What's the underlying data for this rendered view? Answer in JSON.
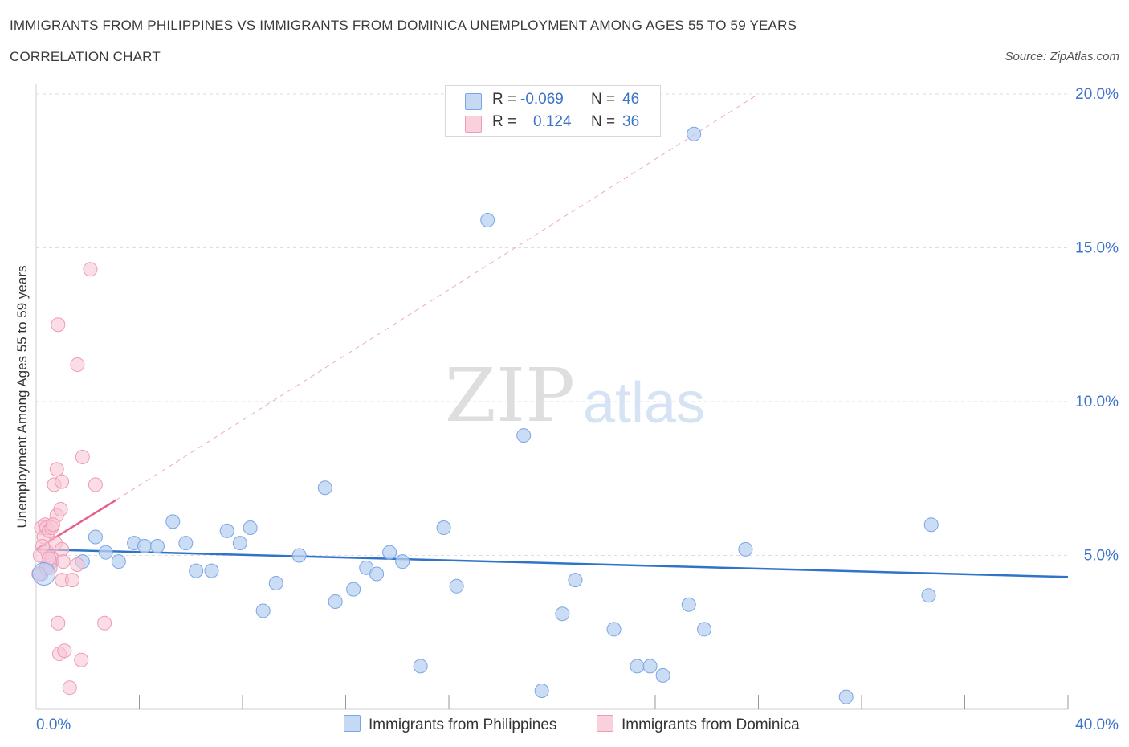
{
  "title": "IMMIGRANTS FROM PHILIPPINES VS IMMIGRANTS FROM DOMINICA UNEMPLOYMENT AMONG AGES 55 TO 59 YEARS",
  "subtitle": "CORRELATION CHART",
  "source": "Source: ZipAtlas.com",
  "watermark": {
    "zip": "ZIP",
    "atlas": "atlas"
  },
  "legend": {
    "rows": [
      {
        "r_label": "R =",
        "r_value": "-0.069",
        "n_label": "N =",
        "n_value": "46",
        "color": "#7aa6e6"
      },
      {
        "r_label": "R =",
        "r_value": "0.124",
        "n_label": "N =",
        "n_value": "36",
        "color": "#f09ab5"
      }
    ]
  },
  "bottom_legend": [
    "Immigrants from Philippines",
    "Immigrants from Dominica"
  ],
  "colors": {
    "blue_fill": "#b9d0f2",
    "blue_stroke": "#7aa6e6",
    "blue_line": "#2f74c9",
    "pink_fill": "#f8c6d5",
    "pink_stroke": "#f09ab5",
    "pink_line": "#e8608a",
    "axis_text": "#3d73c9",
    "grid": "#dedede"
  },
  "chart_data": {
    "type": "scatter",
    "title": "IMMIGRANTS FROM PHILIPPINES VS IMMIGRANTS FROM DOMINICA UNEMPLOYMENT AMONG AGES 55 TO 59 YEARS",
    "xlabel": "",
    "ylabel": "Unemployment Among Ages 55 to 59 years",
    "xlim": [
      0,
      40
    ],
    "ylim": [
      0,
      20
    ],
    "x_tick_labels": [
      {
        "x": 0,
        "label": "0.0%"
      },
      {
        "x": 40,
        "label": "40.0%"
      }
    ],
    "y_tick_labels": [
      {
        "y": 5,
        "label": "5.0%"
      },
      {
        "y": 10,
        "label": "10.0%"
      },
      {
        "y": 15,
        "label": "15.0%"
      },
      {
        "y": 20,
        "label": "20.0%"
      }
    ],
    "grid": true,
    "series": [
      {
        "name": "Immigrants from Philippines",
        "points": [
          [
            0.2,
            4.4
          ],
          [
            0.6,
            4.8
          ],
          [
            1.8,
            4.8
          ],
          [
            2.3,
            5.6
          ],
          [
            2.7,
            5.1
          ],
          [
            3.2,
            4.8
          ],
          [
            3.8,
            5.4
          ],
          [
            4.2,
            5.3
          ],
          [
            4.7,
            5.3
          ],
          [
            5.3,
            6.1
          ],
          [
            5.8,
            5.4
          ],
          [
            6.2,
            4.5
          ],
          [
            6.8,
            4.5
          ],
          [
            7.4,
            5.8
          ],
          [
            7.9,
            5.4
          ],
          [
            8.3,
            5.9
          ],
          [
            8.8,
            3.2
          ],
          [
            9.3,
            4.1
          ],
          [
            10.2,
            5.0
          ],
          [
            11.2,
            7.2
          ],
          [
            11.6,
            3.5
          ],
          [
            12.3,
            3.9
          ],
          [
            12.8,
            4.6
          ],
          [
            13.2,
            4.4
          ],
          [
            13.7,
            5.1
          ],
          [
            14.2,
            4.8
          ],
          [
            14.9,
            1.4
          ],
          [
            15.8,
            5.9
          ],
          [
            16.3,
            4.0
          ],
          [
            17.5,
            15.9
          ],
          [
            18.9,
            8.9
          ],
          [
            19.6,
            0.6
          ],
          [
            20.4,
            3.1
          ],
          [
            20.9,
            4.2
          ],
          [
            22.4,
            2.6
          ],
          [
            23.3,
            1.4
          ],
          [
            23.8,
            1.4
          ],
          [
            24.3,
            1.1
          ],
          [
            25.3,
            3.4
          ],
          [
            25.5,
            18.7
          ],
          [
            25.9,
            2.6
          ],
          [
            27.5,
            5.2
          ],
          [
            31.4,
            0.4
          ],
          [
            34.6,
            3.7
          ],
          [
            34.7,
            6.0
          ],
          [
            0.4,
            4.6
          ]
        ],
        "trend": {
          "x": [
            0,
            40
          ],
          "y": [
            5.2,
            4.3
          ]
        }
      },
      {
        "name": "Immigrants from Dominica",
        "points": [
          [
            0.1,
            4.4
          ],
          [
            0.15,
            5.0
          ],
          [
            0.2,
            5.9
          ],
          [
            0.3,
            5.6
          ],
          [
            0.35,
            6.0
          ],
          [
            0.4,
            5.9
          ],
          [
            0.45,
            5.1
          ],
          [
            0.5,
            5.8
          ],
          [
            0.55,
            4.6
          ],
          [
            0.6,
            4.9
          ],
          [
            0.6,
            5.9
          ],
          [
            0.7,
            7.3
          ],
          [
            0.75,
            5.4
          ],
          [
            0.8,
            7.8
          ],
          [
            0.8,
            6.3
          ],
          [
            0.85,
            12.5
          ],
          [
            0.85,
            2.8
          ],
          [
            0.9,
            1.8
          ],
          [
            0.95,
            6.5
          ],
          [
            1.0,
            5.2
          ],
          [
            1.0,
            4.2
          ],
          [
            1.0,
            7.4
          ],
          [
            1.05,
            4.8
          ],
          [
            1.1,
            1.9
          ],
          [
            1.3,
            0.7
          ],
          [
            1.4,
            4.2
          ],
          [
            1.6,
            11.2
          ],
          [
            1.6,
            4.7
          ],
          [
            1.75,
            1.6
          ],
          [
            1.8,
            8.2
          ],
          [
            2.1,
            14.3
          ],
          [
            2.3,
            7.3
          ],
          [
            2.65,
            2.8
          ],
          [
            0.25,
            5.3
          ],
          [
            0.5,
            4.9
          ],
          [
            0.65,
            6.0
          ]
        ],
        "trend": {
          "x": [
            0,
            3.1
          ],
          "y": [
            5.2,
            6.8
          ]
        },
        "trend_extended": {
          "x": [
            3.1,
            28.0
          ],
          "y": [
            6.8,
            20.0
          ]
        }
      }
    ]
  }
}
